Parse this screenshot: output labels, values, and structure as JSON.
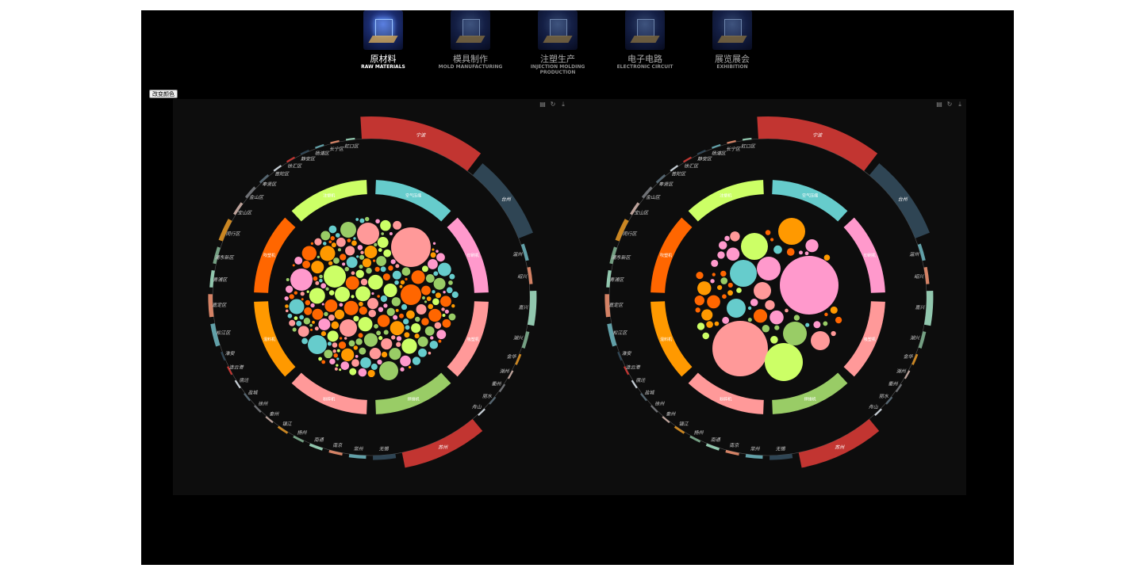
{
  "nav": [
    {
      "cn": "原材料",
      "en": "RAW MATERIALS",
      "active": true
    },
    {
      "cn": "模具制作",
      "en": "MOLD MANUFACTURING",
      "active": false
    },
    {
      "cn": "注塑生产",
      "en": "INJECTION MOLDING PRODUCTION",
      "active": false
    },
    {
      "cn": "电子电路",
      "en": "ELECTRONIC CIRCUIT",
      "active": false
    },
    {
      "cn": "展览展会",
      "en": "EXHIBITION",
      "active": false
    }
  ],
  "change_color_label": "改变颜色",
  "toolbox_icons": [
    "data-view-icon",
    "restore-icon",
    "save-image-icon"
  ],
  "chart_data": [
    {
      "type": "bubble-ring",
      "outer_ring": [
        {
          "name": "宁波",
          "value": 10,
          "color": "#c23531"
        },
        {
          "name": "台州",
          "value": 7,
          "color": "#2f4554"
        },
        {
          "name": "温州",
          "value": 1.5,
          "color": "#61a0a8"
        },
        {
          "name": "绍兴",
          "value": 1.5,
          "color": "#d48265"
        },
        {
          "name": "嘉兴",
          "value": 3,
          "color": "#91c7ae"
        },
        {
          "name": "湖兴",
          "value": 1.5,
          "color": "#749f83"
        },
        {
          "name": "金华",
          "value": 1,
          "color": "#ca8622"
        },
        {
          "name": "湖州",
          "value": 0.8,
          "color": "#bda29a"
        },
        {
          "name": "衢州",
          "value": 0.8,
          "color": "#6e7074"
        },
        {
          "name": "丽水",
          "value": 0.8,
          "color": "#546570"
        },
        {
          "name": "舟山",
          "value": 0.8,
          "color": "#c4ccd3"
        },
        {
          "name": "苏州",
          "value": 7,
          "color": "#c23531"
        },
        {
          "name": "无锡",
          "value": 2,
          "color": "#2f4554"
        },
        {
          "name": "常州",
          "value": 1.5,
          "color": "#61a0a8"
        },
        {
          "name": "南京",
          "value": 1.2,
          "color": "#d48265"
        },
        {
          "name": "南通",
          "value": 1.2,
          "color": "#91c7ae"
        },
        {
          "name": "扬州",
          "value": 1,
          "color": "#749f83"
        },
        {
          "name": "镇江",
          "value": 1,
          "color": "#ca8622"
        },
        {
          "name": "泰州",
          "value": 0.8,
          "color": "#bda29a"
        },
        {
          "name": "徐州",
          "value": 0.8,
          "color": "#6e7074"
        },
        {
          "name": "盐城",
          "value": 0.8,
          "color": "#546570"
        },
        {
          "name": "宿迁",
          "value": 0.8,
          "color": "#c4ccd3"
        },
        {
          "name": "连云港",
          "value": 0.8,
          "color": "#c23531"
        },
        {
          "name": "淮安",
          "value": 0.8,
          "color": "#2f4554"
        },
        {
          "name": "松江区",
          "value": 2,
          "color": "#61a0a8"
        },
        {
          "name": "嘉定区",
          "value": 2,
          "color": "#d48265"
        },
        {
          "name": "青浦区",
          "value": 1.5,
          "color": "#91c7ae"
        },
        {
          "name": "浦东新区",
          "value": 1.5,
          "color": "#749f83"
        },
        {
          "name": "闵行区",
          "value": 2,
          "color": "#ca8622"
        },
        {
          "name": "宝山区",
          "value": 1.2,
          "color": "#bda29a"
        },
        {
          "name": "金山区",
          "value": 1.2,
          "color": "#6e7074"
        },
        {
          "name": "奉贤区",
          "value": 1,
          "color": "#546570"
        },
        {
          "name": "普陀区",
          "value": 0.8,
          "color": "#c4ccd3"
        },
        {
          "name": "徐汇区",
          "value": 0.8,
          "color": "#c23531"
        },
        {
          "name": "静安区",
          "value": 0.8,
          "color": "#2f4554"
        },
        {
          "name": "杨浦区",
          "value": 0.8,
          "color": "#61a0a8"
        },
        {
          "name": "长宁区",
          "value": 0.8,
          "color": "#d48265"
        },
        {
          "name": "虹口区",
          "value": 0.8,
          "color": "#91c7ae"
        }
      ],
      "inner_ring": [
        {
          "name": "空气压缩",
          "color": "#66cccc"
        },
        {
          "name": "印刷机",
          "color": "#ff99cc"
        },
        {
          "name": "吸塑机",
          "color": "#ff9999"
        },
        {
          "name": "焊接机",
          "color": "#99cc66"
        },
        {
          "name": "粉碎机",
          "color": "#ff9999"
        },
        {
          "name": "混料机",
          "color": "#ff9900"
        },
        {
          "name": "吹塑机",
          "color": "#ff6600"
        },
        {
          "name": "注塑机",
          "color": "#ccff66"
        }
      ],
      "bubbles": "many"
    },
    {
      "type": "bubble-ring",
      "outer_ring": "same",
      "inner_ring": "same",
      "bubbles": "few"
    }
  ]
}
